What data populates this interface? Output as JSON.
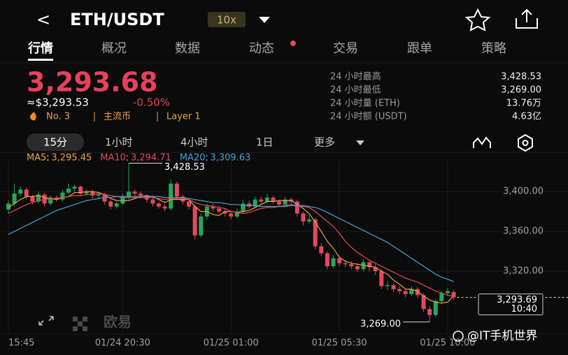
{
  "header": {
    "back": "<",
    "symbol": "ETH/USDT",
    "leverage": "10x"
  },
  "tabs": [
    "行情",
    "概况",
    "数据",
    "动态",
    "交易",
    "跟单",
    "策略"
  ],
  "ticker": {
    "price": "3,293.68",
    "usd_price": "≈$3,293.53",
    "change": "-0.50%",
    "rank": "No. 3",
    "tags": [
      "主流币",
      "Layer 1"
    ]
  },
  "stats": [
    {
      "label": "24 小时最高",
      "value": "3,428.53"
    },
    {
      "label": "24 小时最低",
      "value": "3,269.00"
    },
    {
      "label": "24 小时量 (ETH)",
      "value": "13.76万"
    },
    {
      "label": "24 小时额 (USDT)",
      "value": "4.63亿"
    }
  ],
  "intervals": [
    "15分",
    "1小时",
    "4小时",
    "1日",
    "更多"
  ],
  "chart_data": {
    "type": "candlestick",
    "up_color": "#26a65b",
    "down_color": "#e3485f",
    "xlim": [
      -1.16,
      93
    ],
    "ylim": [
      3259,
      3431
    ],
    "xticks": [
      {
        "value": 0,
        "label": "15:45"
      },
      {
        "value": 19,
        "label": "01/24 20:30"
      },
      {
        "value": 37,
        "label": "01/25 01:00"
      },
      {
        "value": 55,
        "label": "01/25 05:30"
      },
      {
        "value": 73,
        "label": "01/25 10:00"
      }
    ],
    "yticks": [
      {
        "value": 3400,
        "label": "3,400.00"
      },
      {
        "value": 3360,
        "label": "3,360.00"
      },
      {
        "value": 3320,
        "label": "3,320.00"
      }
    ],
    "grid": true,
    "open": [
      3382,
      3388,
      3398,
      3402,
      3395,
      3390,
      3397,
      3388,
      3394,
      3392,
      3399,
      3403,
      3405,
      3398,
      3400,
      3396,
      3397,
      3390,
      3385,
      3388,
      3395,
      3400,
      3398,
      3396,
      3392,
      3388,
      3385,
      3383,
      3408,
      3395,
      3390,
      3385,
      3356,
      3375,
      3385,
      3383,
      3380,
      3378,
      3375,
      3380,
      3388,
      3385,
      3392,
      3390,
      3394,
      3390,
      3387,
      3392,
      3390,
      3378,
      3370,
      3372,
      3345,
      3338,
      3325,
      3333,
      3328,
      3327,
      3325,
      3322,
      3329,
      3324,
      3320,
      3305,
      3306,
      3302,
      3300,
      3297,
      3302,
      3296,
      3282,
      3276,
      3290,
      3298,
      3299
    ],
    "high": [
      3391,
      3408,
      3405,
      3404,
      3397,
      3400,
      3399,
      3396,
      3396,
      3402,
      3408,
      3407,
      3406,
      3402,
      3402,
      3399,
      3399,
      3392,
      3390,
      3398,
      3428.53,
      3402,
      3400,
      3397,
      3394,
      3390,
      3388,
      3412,
      3410,
      3397,
      3392,
      3387,
      3378,
      3388,
      3388,
      3386,
      3383,
      3380,
      3383,
      3392,
      3391,
      3395,
      3395,
      3398,
      3396,
      3392,
      3395,
      3394,
      3392,
      3380,
      3376,
      3374,
      3348,
      3340,
      3336,
      3336,
      3331,
      3330,
      3328,
      3332,
      3331,
      3327,
      3322,
      3310,
      3308,
      3305,
      3302,
      3305,
      3304,
      3298,
      3285,
      3292,
      3300,
      3303,
      3301
    ],
    "low": [
      3378,
      3385,
      3395,
      3392,
      3387,
      3388,
      3385,
      3386,
      3390,
      3390,
      3397,
      3400,
      3396,
      3396,
      3393,
      3393,
      3387,
      3382,
      3383,
      3386,
      3392,
      3395,
      3393,
      3389,
      3385,
      3383,
      3380,
      3381,
      3392,
      3387,
      3382,
      3352,
      3354,
      3372,
      3380,
      3378,
      3375,
      3372,
      3373,
      3378,
      3383,
      3383,
      3387,
      3388,
      3388,
      3385,
      3385,
      3387,
      3375,
      3366,
      3368,
      3342,
      3335,
      3322,
      3323,
      3325,
      3324,
      3322,
      3319,
      3320,
      3320,
      3316,
      3302,
      3301,
      3299,
      3297,
      3294,
      3295,
      3293,
      3279,
      3269,
      3274,
      3287,
      3295,
      3291
    ],
    "close": [
      3388,
      3398,
      3402,
      3395,
      3390,
      3397,
      3388,
      3394,
      3392,
      3399,
      3403,
      3405,
      3398,
      3400,
      3396,
      3397,
      3390,
      3385,
      3388,
      3395,
      3400,
      3398,
      3396,
      3392,
      3388,
      3385,
      3383,
      3408,
      3395,
      3390,
      3385,
      3356,
      3375,
      3385,
      3383,
      3380,
      3378,
      3375,
      3380,
      3388,
      3385,
      3392,
      3390,
      3394,
      3390,
      3387,
      3392,
      3390,
      3378,
      3370,
      3372,
      3345,
      3338,
      3325,
      3333,
      3328,
      3327,
      3325,
      3322,
      3329,
      3324,
      3320,
      3305,
      3306,
      3302,
      3300,
      3297,
      3302,
      3296,
      3282,
      3276,
      3290,
      3298,
      3300,
      3293.69
    ],
    "series": [
      {
        "name": "MA5",
        "color": "#e8a33d",
        "value_label": "3,295.45",
        "values": [
          3384,
          3388,
          3392,
          3395,
          3395,
          3396,
          3394,
          3393,
          3392,
          3394,
          3395,
          3399,
          3399,
          3400,
          3400,
          3399,
          3397,
          3393,
          3391,
          3391,
          3391,
          3393,
          3395,
          3396,
          3395,
          3392,
          3389,
          3392,
          3392,
          3392,
          3392,
          3385,
          3380,
          3380,
          3377,
          3376,
          3380,
          3380,
          3379,
          3380,
          3381,
          3384,
          3387,
          3390,
          3390,
          3391,
          3391,
          3391,
          3387,
          3383,
          3378,
          3369,
          3360,
          3350,
          3343,
          3334,
          3330,
          3328,
          3327,
          3326,
          3325,
          3324,
          3320,
          3317,
          3311,
          3307,
          3302,
          3302,
          3300,
          3295,
          3291,
          3289,
          3288,
          3289,
          3295.45
        ]
      },
      {
        "name": "MA10",
        "color": "#e3485f",
        "value_label": "3,294.71",
        "values": [
          3378,
          3381,
          3384,
          3387,
          3389,
          3391,
          3392,
          3393,
          3393,
          3394,
          3395,
          3396,
          3396,
          3397,
          3397,
          3398,
          3397,
          3396,
          3395,
          3394,
          3394,
          3394,
          3394,
          3394,
          3394,
          3393,
          3392,
          3393,
          3393,
          3393,
          3392,
          3389,
          3387,
          3386,
          3385,
          3384,
          3383,
          3380,
          3379,
          3378,
          3379,
          3381,
          3383,
          3384,
          3384,
          3385,
          3386,
          3387,
          3386,
          3385,
          3384,
          3380,
          3375,
          3370,
          3365,
          3358,
          3350,
          3344,
          3339,
          3335,
          3331,
          3328,
          3325,
          3322,
          3319,
          3316,
          3313,
          3311,
          3309,
          3306,
          3303,
          3300,
          3298,
          3296,
          3294.71
        ]
      },
      {
        "name": "MA20",
        "color": "#3ea6d6",
        "value_label": "3,309.63",
        "values": [
          3357,
          3360,
          3363,
          3366,
          3369,
          3372,
          3375,
          3378,
          3381,
          3383,
          3385,
          3387,
          3389,
          3391,
          3392,
          3393,
          3394,
          3394,
          3395,
          3395,
          3395,
          3395,
          3395,
          3395,
          3395,
          3395,
          3394,
          3394,
          3394,
          3394,
          3393,
          3392,
          3391,
          3390,
          3389,
          3389,
          3388,
          3387,
          3387,
          3386,
          3386,
          3386,
          3385,
          3385,
          3385,
          3385,
          3385,
          3386,
          3386,
          3386,
          3385,
          3384,
          3382,
          3379,
          3376,
          3373,
          3370,
          3367,
          3364,
          3361,
          3358,
          3355,
          3352,
          3349,
          3345,
          3341,
          3337,
          3333,
          3329,
          3325,
          3321,
          3317,
          3314,
          3312,
          3309.63
        ]
      }
    ],
    "high_label": "3,428.53",
    "low_label": "3,269.00",
    "current_label": "3,293.69",
    "countdown": "10:40"
  },
  "watermark": {
    "logo": "欧易",
    "credit": "@IT手机世界"
  }
}
